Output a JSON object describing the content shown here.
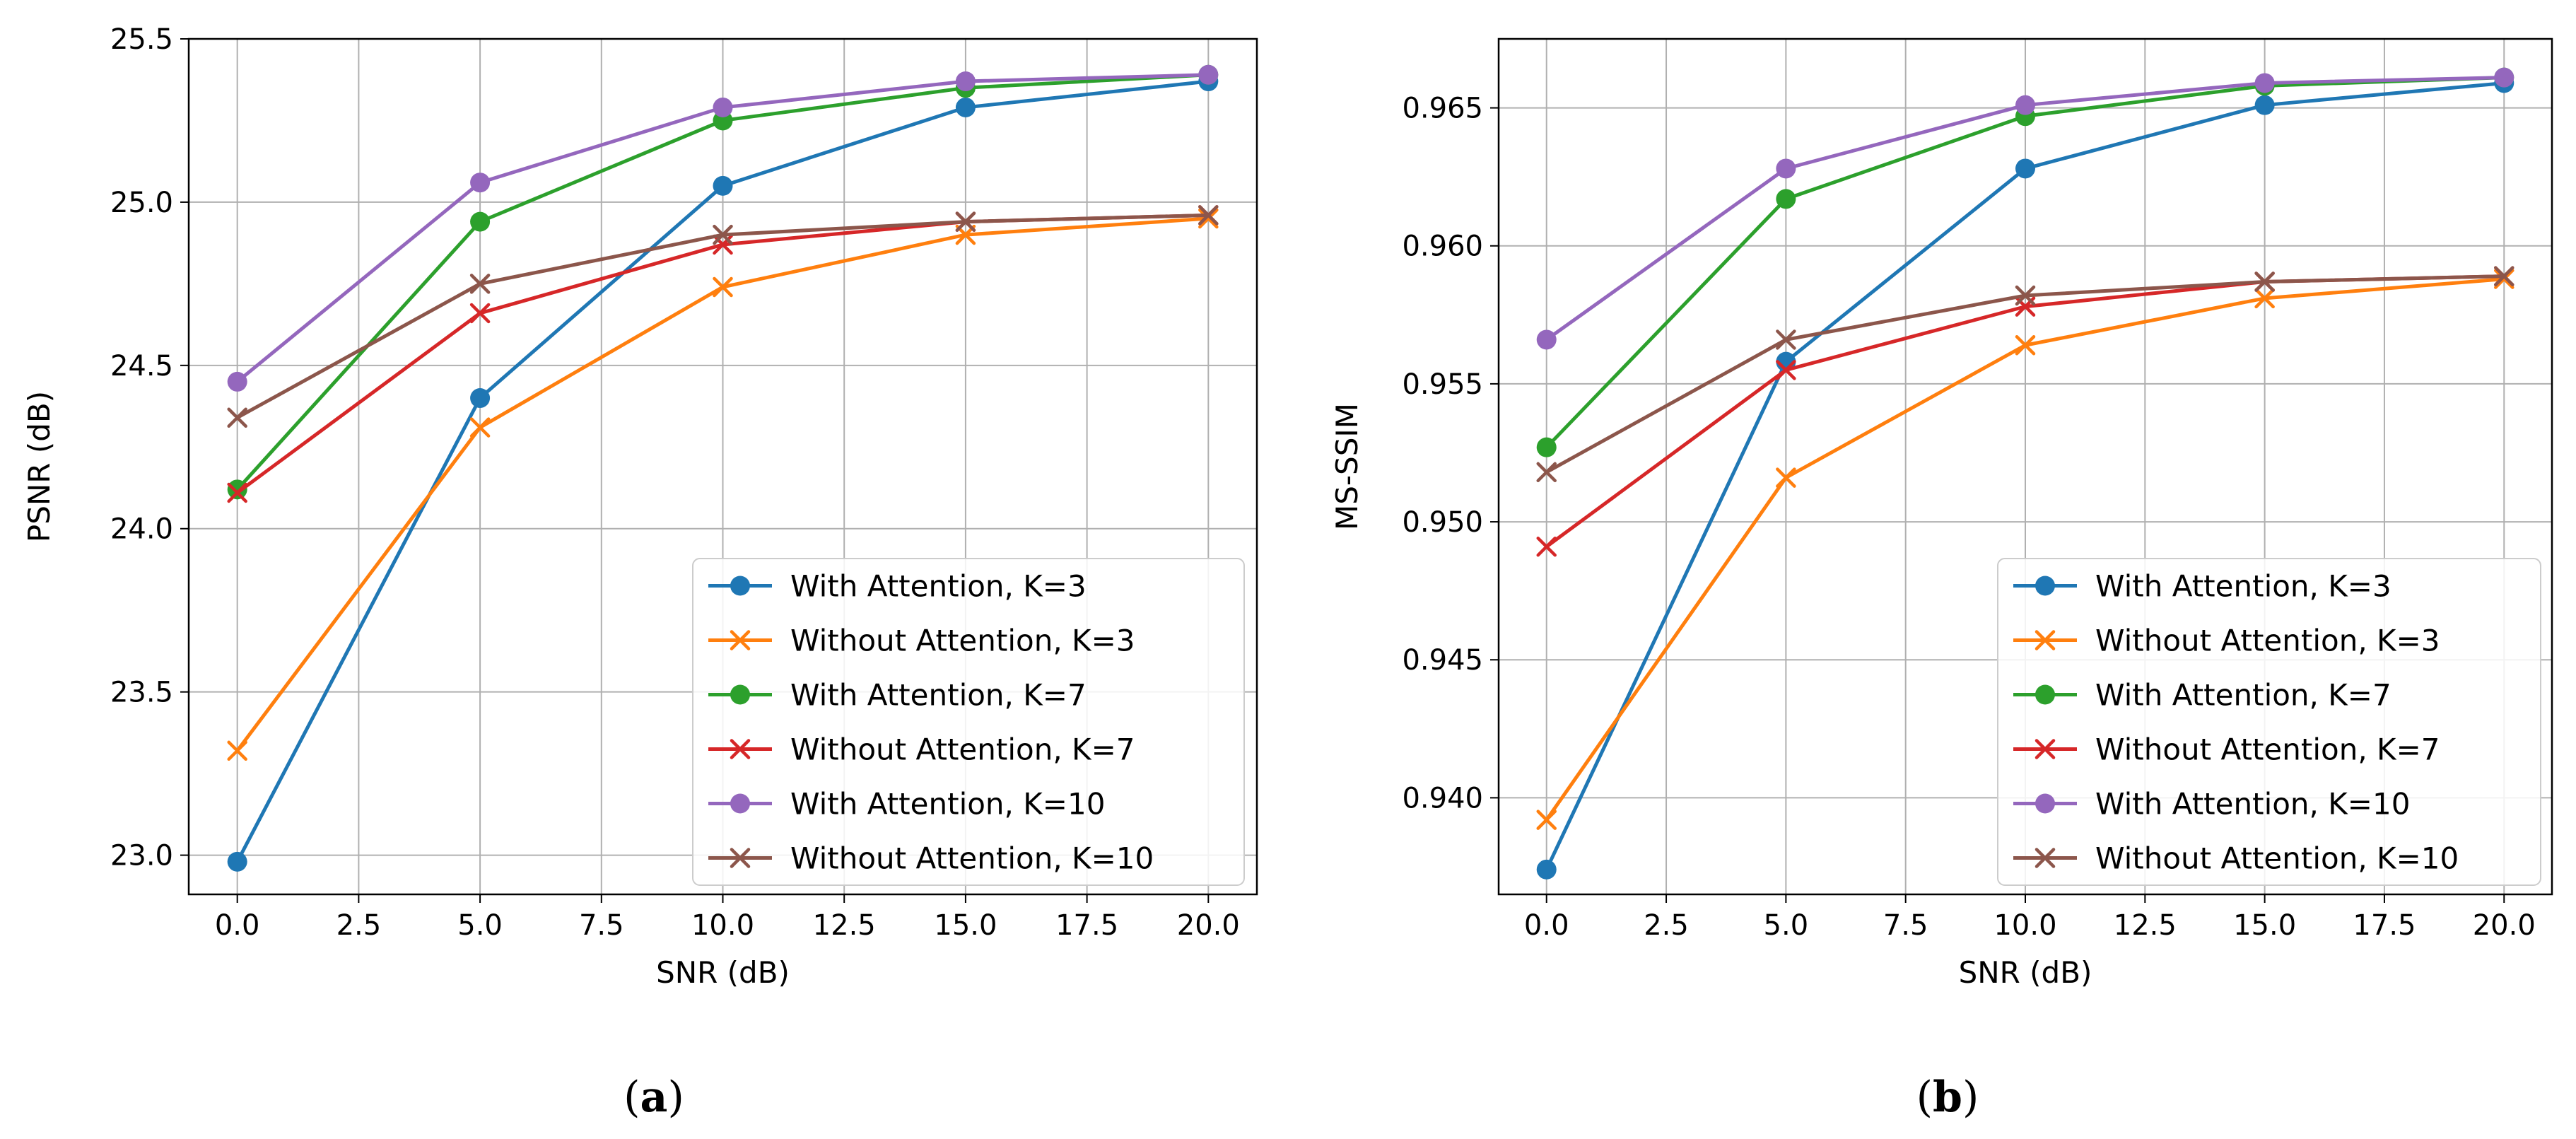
{
  "chart_data": [
    {
      "type": "line",
      "panel_label": "a",
      "title": "",
      "xlabel": "SNR (dB)",
      "ylabel": "PSNR (dB)",
      "xlim": [
        -1.0,
        21.0
      ],
      "ylim": [
        22.88,
        25.5
      ],
      "xticks": [
        0.0,
        2.5,
        5.0,
        7.5,
        10.0,
        12.5,
        15.0,
        17.5,
        20.0
      ],
      "xtick_labels": [
        "0.0",
        "2.5",
        "5.0",
        "7.5",
        "10.0",
        "12.5",
        "15.0",
        "17.5",
        "20.0"
      ],
      "yticks": [
        23.0,
        23.5,
        24.0,
        24.5,
        25.0,
        25.5
      ],
      "ytick_labels": [
        "23.0",
        "23.5",
        "24.0",
        "24.5",
        "25.0",
        "25.5"
      ],
      "grid": true,
      "legend_position": "lower-right",
      "x": [
        0,
        5,
        10,
        15,
        20
      ],
      "series": [
        {
          "name": "With Attention, K=3",
          "color": "#1f77b4",
          "marker": "circle",
          "values": [
            22.98,
            24.4,
            25.05,
            25.29,
            25.37
          ]
        },
        {
          "name": "Without Attention, K=3",
          "color": "#ff7f0e",
          "marker": "x",
          "values": [
            23.32,
            24.31,
            24.74,
            24.9,
            24.95
          ]
        },
        {
          "name": "With Attention, K=7",
          "color": "#2ca02c",
          "marker": "circle",
          "values": [
            24.12,
            24.94,
            25.25,
            25.35,
            25.39
          ]
        },
        {
          "name": "Without Attention, K=7",
          "color": "#d62728",
          "marker": "x",
          "values": [
            24.11,
            24.66,
            24.87,
            24.94,
            24.96
          ]
        },
        {
          "name": "With Attention, K=10",
          "color": "#9467bd",
          "marker": "circle",
          "values": [
            24.45,
            25.06,
            25.29,
            25.37,
            25.39
          ]
        },
        {
          "name": "Without Attention, K=10",
          "color": "#8c564b",
          "marker": "x",
          "values": [
            24.34,
            24.75,
            24.9,
            24.94,
            24.96
          ]
        }
      ]
    },
    {
      "type": "line",
      "panel_label": "b",
      "title": "",
      "xlabel": "SNR (dB)",
      "ylabel": "MS-SSIM",
      "xlim": [
        -1.0,
        21.0
      ],
      "ylim": [
        0.9365,
        0.9675
      ],
      "xticks": [
        0.0,
        2.5,
        5.0,
        7.5,
        10.0,
        12.5,
        15.0,
        17.5,
        20.0
      ],
      "xtick_labels": [
        "0.0",
        "2.5",
        "5.0",
        "7.5",
        "10.0",
        "12.5",
        "15.0",
        "17.5",
        "20.0"
      ],
      "yticks": [
        0.94,
        0.945,
        0.95,
        0.955,
        0.96,
        0.965
      ],
      "ytick_labels": [
        "0.940",
        "0.945",
        "0.950",
        "0.955",
        "0.960",
        "0.965"
      ],
      "grid": true,
      "legend_position": "lower-right",
      "x": [
        0,
        5,
        10,
        15,
        20
      ],
      "series": [
        {
          "name": "With Attention, K=3",
          "color": "#1f77b4",
          "marker": "circle",
          "values": [
            0.9374,
            0.9558,
            0.9628,
            0.9651,
            0.9659
          ]
        },
        {
          "name": "Without Attention, K=3",
          "color": "#ff7f0e",
          "marker": "x",
          "values": [
            0.9392,
            0.9516,
            0.9564,
            0.9581,
            0.9588
          ]
        },
        {
          "name": "With Attention, K=7",
          "color": "#2ca02c",
          "marker": "circle",
          "values": [
            0.9527,
            0.9617,
            0.9647,
            0.9658,
            0.9661
          ]
        },
        {
          "name": "Without Attention, K=7",
          "color": "#d62728",
          "marker": "x",
          "values": [
            0.9491,
            0.9555,
            0.9578,
            0.9587,
            0.9589
          ]
        },
        {
          "name": "With Attention, K=10",
          "color": "#9467bd",
          "marker": "circle",
          "values": [
            0.9566,
            0.9628,
            0.9651,
            0.9659,
            0.9661
          ]
        },
        {
          "name": "Without Attention, K=10",
          "color": "#8c564b",
          "marker": "x",
          "values": [
            0.9518,
            0.9566,
            0.9582,
            0.9587,
            0.9589
          ]
        }
      ]
    }
  ],
  "captions": [
    {
      "open": "(",
      "letter": "a",
      "close": ")"
    },
    {
      "open": "(",
      "letter": "b",
      "close": ")"
    }
  ]
}
